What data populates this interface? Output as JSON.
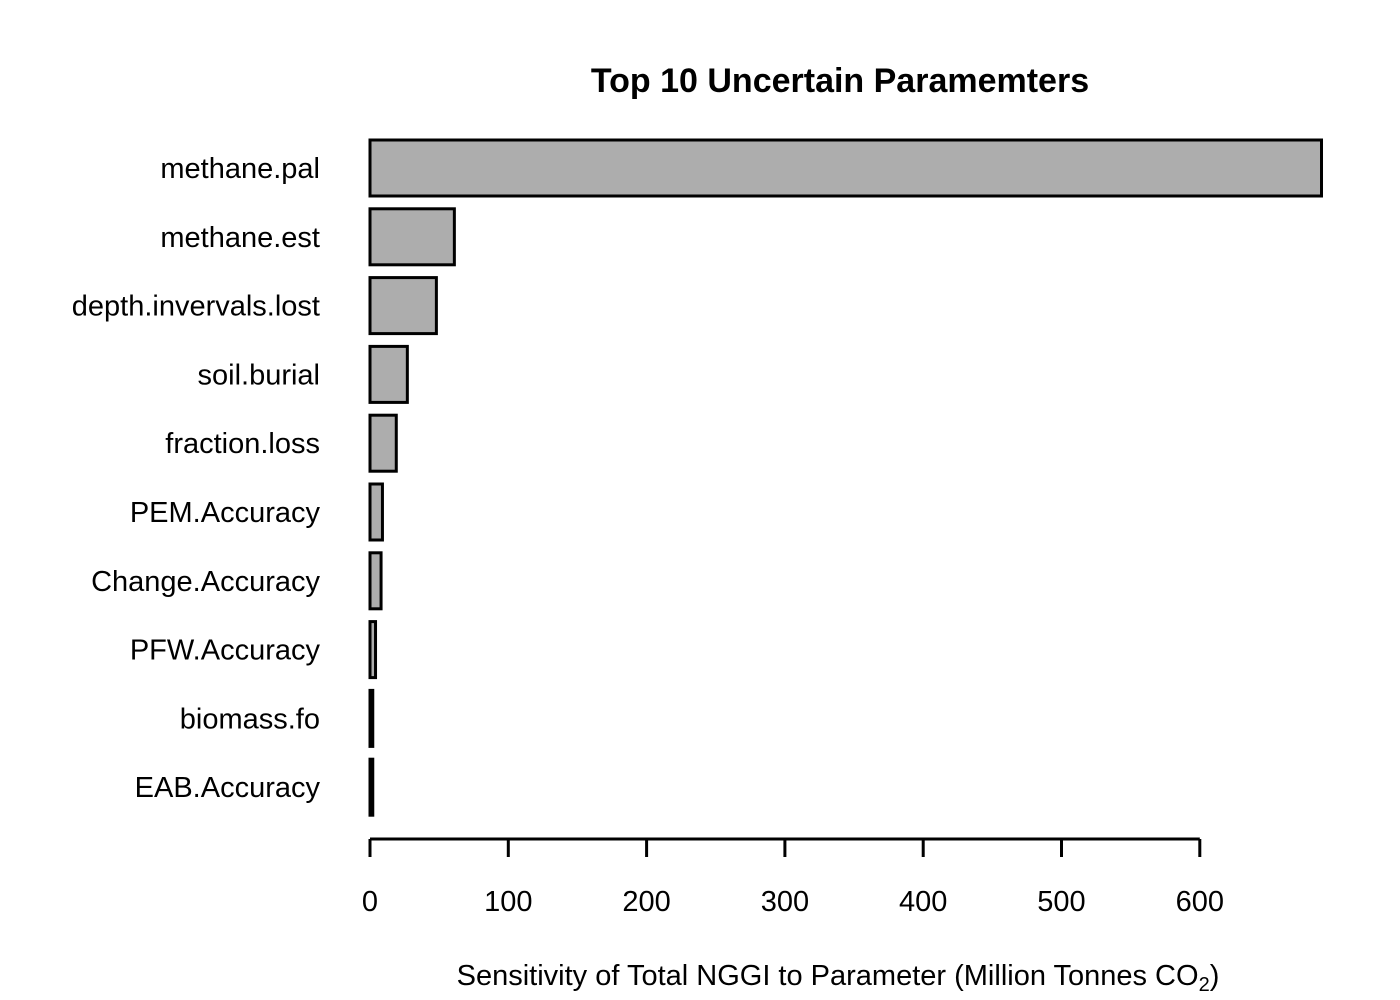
{
  "chart_data": {
    "type": "bar",
    "orientation": "horizontal",
    "title": "Top 10 Uncertain Paramemters",
    "xlabel": "Sensitivity of Total NGGI to Parameter (Million Tonnes CO",
    "xlabel_subscript": "2",
    "xlabel_suffix": ")",
    "categories": [
      "methane.pal",
      "methane.est",
      "depth.invervals.lost",
      "soil.burial",
      "fraction.loss",
      "PEM.Accuracy",
      "Change.Accuracy",
      "PFW.Accuracy",
      "biomass.fo",
      "EAB.Accuracy"
    ],
    "values": [
      688,
      61,
      48,
      27,
      19,
      9,
      8,
      4,
      2,
      2
    ],
    "xticks": [
      0,
      100,
      200,
      300,
      400,
      500,
      600
    ],
    "xlim": [
      0,
      688
    ],
    "bar_color": "#adadad",
    "grid": false,
    "legend": "none"
  }
}
